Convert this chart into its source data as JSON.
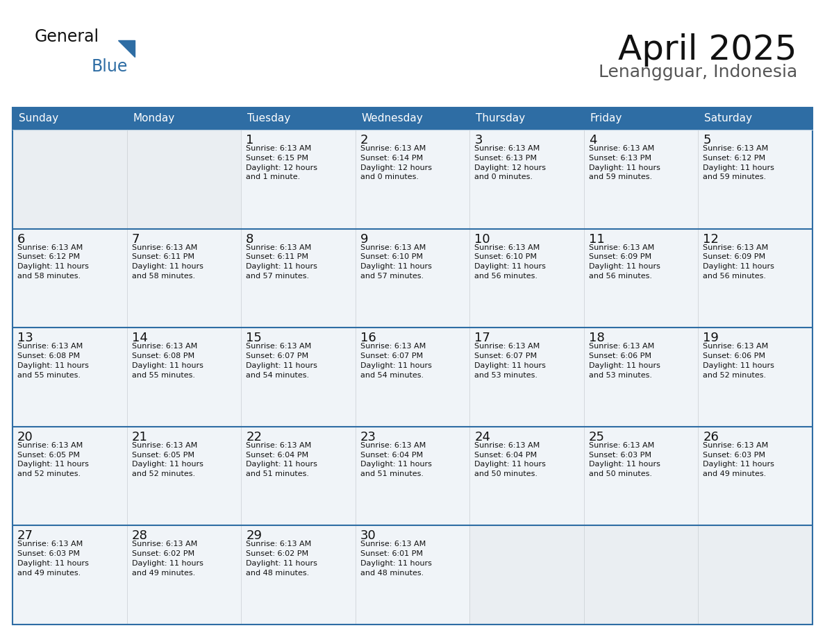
{
  "title": "April 2025",
  "subtitle": "Lenangguar, Indonesia",
  "header_bg": "#2E6DA4",
  "header_text_color": "#FFFFFF",
  "cell_bg": "#F0F4F8",
  "cell_bg_empty_last": "#EBEBEB",
  "separator_color": "#2E6DA4",
  "border_color": "#2E6DA4",
  "day_names": [
    "Sunday",
    "Monday",
    "Tuesday",
    "Wednesday",
    "Thursday",
    "Friday",
    "Saturday"
  ],
  "calendar": [
    [
      {
        "day": "",
        "sunrise": "",
        "sunset": "",
        "daylight": ""
      },
      {
        "day": "",
        "sunrise": "",
        "sunset": "",
        "daylight": ""
      },
      {
        "day": "1",
        "sunrise": "Sunrise: 6:13 AM",
        "sunset": "Sunset: 6:15 PM",
        "daylight": "Daylight: 12 hours\nand 1 minute."
      },
      {
        "day": "2",
        "sunrise": "Sunrise: 6:13 AM",
        "sunset": "Sunset: 6:14 PM",
        "daylight": "Daylight: 12 hours\nand 0 minutes."
      },
      {
        "day": "3",
        "sunrise": "Sunrise: 6:13 AM",
        "sunset": "Sunset: 6:13 PM",
        "daylight": "Daylight: 12 hours\nand 0 minutes."
      },
      {
        "day": "4",
        "sunrise": "Sunrise: 6:13 AM",
        "sunset": "Sunset: 6:13 PM",
        "daylight": "Daylight: 11 hours\nand 59 minutes."
      },
      {
        "day": "5",
        "sunrise": "Sunrise: 6:13 AM",
        "sunset": "Sunset: 6:12 PM",
        "daylight": "Daylight: 11 hours\nand 59 minutes."
      }
    ],
    [
      {
        "day": "6",
        "sunrise": "Sunrise: 6:13 AM",
        "sunset": "Sunset: 6:12 PM",
        "daylight": "Daylight: 11 hours\nand 58 minutes."
      },
      {
        "day": "7",
        "sunrise": "Sunrise: 6:13 AM",
        "sunset": "Sunset: 6:11 PM",
        "daylight": "Daylight: 11 hours\nand 58 minutes."
      },
      {
        "day": "8",
        "sunrise": "Sunrise: 6:13 AM",
        "sunset": "Sunset: 6:11 PM",
        "daylight": "Daylight: 11 hours\nand 57 minutes."
      },
      {
        "day": "9",
        "sunrise": "Sunrise: 6:13 AM",
        "sunset": "Sunset: 6:10 PM",
        "daylight": "Daylight: 11 hours\nand 57 minutes."
      },
      {
        "day": "10",
        "sunrise": "Sunrise: 6:13 AM",
        "sunset": "Sunset: 6:10 PM",
        "daylight": "Daylight: 11 hours\nand 56 minutes."
      },
      {
        "day": "11",
        "sunrise": "Sunrise: 6:13 AM",
        "sunset": "Sunset: 6:09 PM",
        "daylight": "Daylight: 11 hours\nand 56 minutes."
      },
      {
        "day": "12",
        "sunrise": "Sunrise: 6:13 AM",
        "sunset": "Sunset: 6:09 PM",
        "daylight": "Daylight: 11 hours\nand 56 minutes."
      }
    ],
    [
      {
        "day": "13",
        "sunrise": "Sunrise: 6:13 AM",
        "sunset": "Sunset: 6:08 PM",
        "daylight": "Daylight: 11 hours\nand 55 minutes."
      },
      {
        "day": "14",
        "sunrise": "Sunrise: 6:13 AM",
        "sunset": "Sunset: 6:08 PM",
        "daylight": "Daylight: 11 hours\nand 55 minutes."
      },
      {
        "day": "15",
        "sunrise": "Sunrise: 6:13 AM",
        "sunset": "Sunset: 6:07 PM",
        "daylight": "Daylight: 11 hours\nand 54 minutes."
      },
      {
        "day": "16",
        "sunrise": "Sunrise: 6:13 AM",
        "sunset": "Sunset: 6:07 PM",
        "daylight": "Daylight: 11 hours\nand 54 minutes."
      },
      {
        "day": "17",
        "sunrise": "Sunrise: 6:13 AM",
        "sunset": "Sunset: 6:07 PM",
        "daylight": "Daylight: 11 hours\nand 53 minutes."
      },
      {
        "day": "18",
        "sunrise": "Sunrise: 6:13 AM",
        "sunset": "Sunset: 6:06 PM",
        "daylight": "Daylight: 11 hours\nand 53 minutes."
      },
      {
        "day": "19",
        "sunrise": "Sunrise: 6:13 AM",
        "sunset": "Sunset: 6:06 PM",
        "daylight": "Daylight: 11 hours\nand 52 minutes."
      }
    ],
    [
      {
        "day": "20",
        "sunrise": "Sunrise: 6:13 AM",
        "sunset": "Sunset: 6:05 PM",
        "daylight": "Daylight: 11 hours\nand 52 minutes."
      },
      {
        "day": "21",
        "sunrise": "Sunrise: 6:13 AM",
        "sunset": "Sunset: 6:05 PM",
        "daylight": "Daylight: 11 hours\nand 52 minutes."
      },
      {
        "day": "22",
        "sunrise": "Sunrise: 6:13 AM",
        "sunset": "Sunset: 6:04 PM",
        "daylight": "Daylight: 11 hours\nand 51 minutes."
      },
      {
        "day": "23",
        "sunrise": "Sunrise: 6:13 AM",
        "sunset": "Sunset: 6:04 PM",
        "daylight": "Daylight: 11 hours\nand 51 minutes."
      },
      {
        "day": "24",
        "sunrise": "Sunrise: 6:13 AM",
        "sunset": "Sunset: 6:04 PM",
        "daylight": "Daylight: 11 hours\nand 50 minutes."
      },
      {
        "day": "25",
        "sunrise": "Sunrise: 6:13 AM",
        "sunset": "Sunset: 6:03 PM",
        "daylight": "Daylight: 11 hours\nand 50 minutes."
      },
      {
        "day": "26",
        "sunrise": "Sunrise: 6:13 AM",
        "sunset": "Sunset: 6:03 PM",
        "daylight": "Daylight: 11 hours\nand 49 minutes."
      }
    ],
    [
      {
        "day": "27",
        "sunrise": "Sunrise: 6:13 AM",
        "sunset": "Sunset: 6:03 PM",
        "daylight": "Daylight: 11 hours\nand 49 minutes."
      },
      {
        "day": "28",
        "sunrise": "Sunrise: 6:13 AM",
        "sunset": "Sunset: 6:02 PM",
        "daylight": "Daylight: 11 hours\nand 49 minutes."
      },
      {
        "day": "29",
        "sunrise": "Sunrise: 6:13 AM",
        "sunset": "Sunset: 6:02 PM",
        "daylight": "Daylight: 11 hours\nand 48 minutes."
      },
      {
        "day": "30",
        "sunrise": "Sunrise: 6:13 AM",
        "sunset": "Sunset: 6:01 PM",
        "daylight": "Daylight: 11 hours\nand 48 minutes."
      },
      {
        "day": "",
        "sunrise": "",
        "sunset": "",
        "daylight": ""
      },
      {
        "day": "",
        "sunrise": "",
        "sunset": "",
        "daylight": ""
      },
      {
        "day": "",
        "sunrise": "",
        "sunset": "",
        "daylight": ""
      }
    ]
  ]
}
